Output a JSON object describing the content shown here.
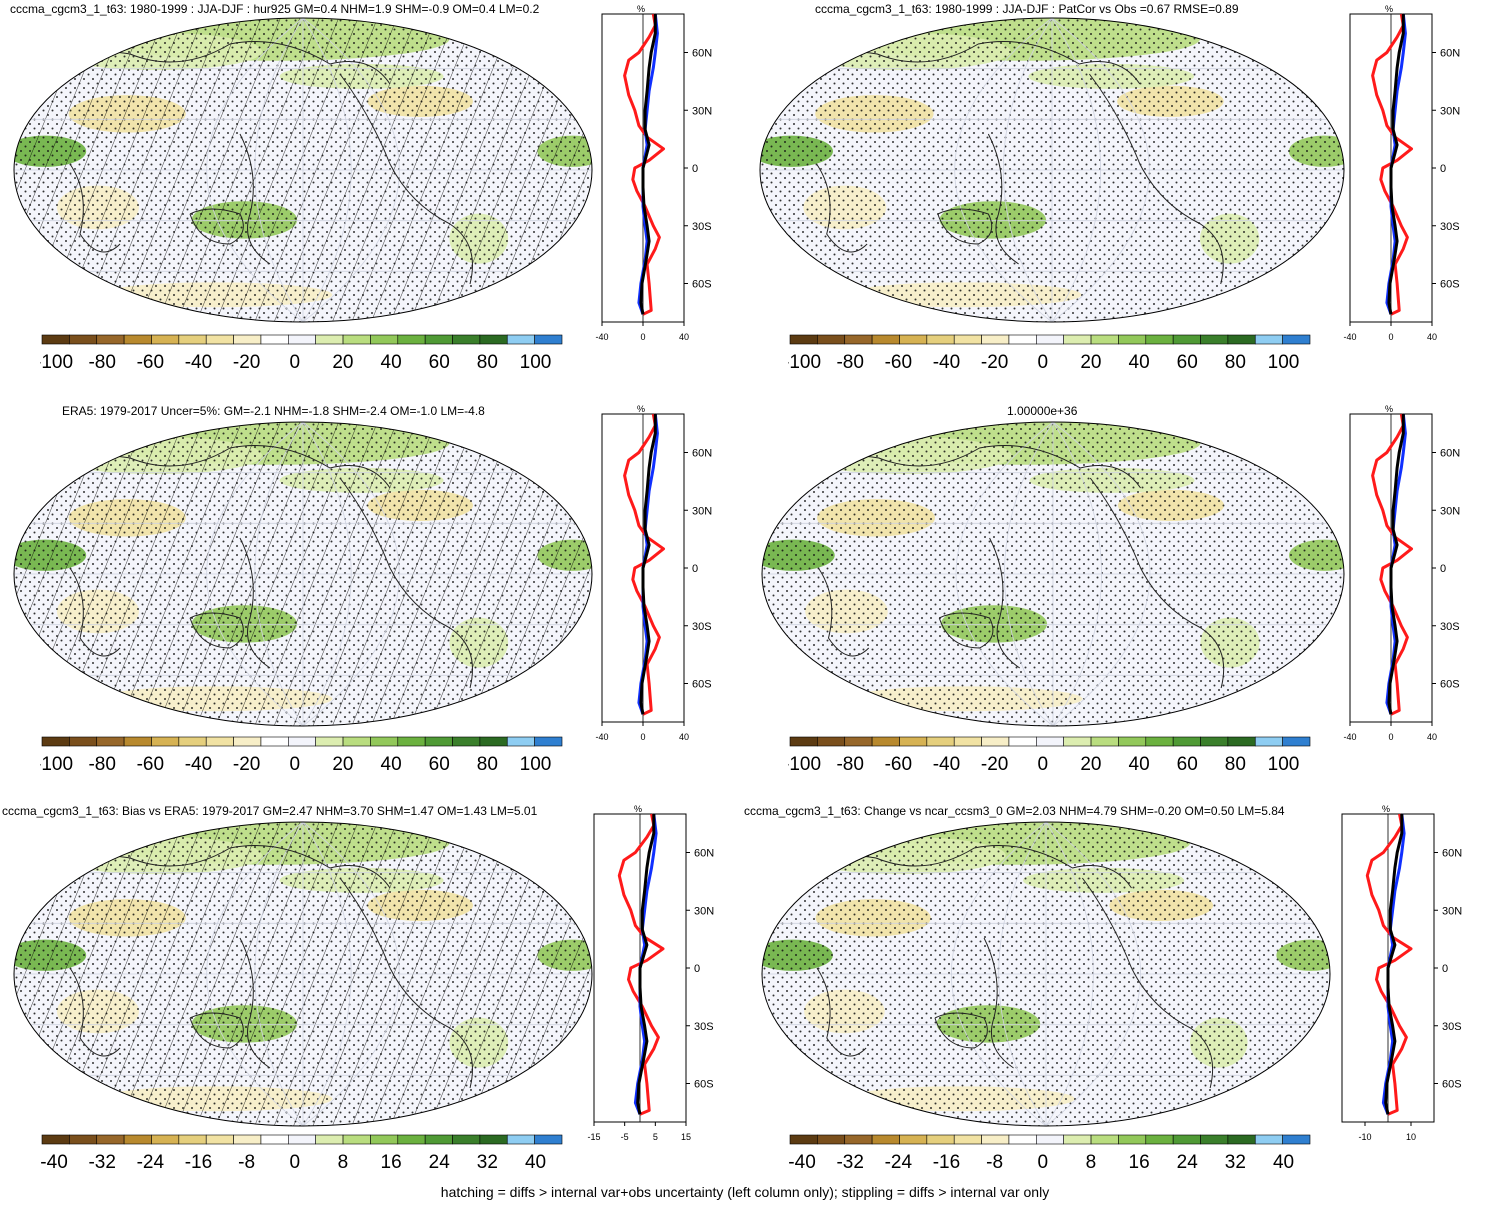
{
  "footer": "hatching = diffs > internal var+obs uncertainty (left column only); stippling = diffs > internal var only",
  "palette": [
    "#5c3b12",
    "#7a4f1c",
    "#97672a",
    "#b8892e",
    "#d6b253",
    "#e5cf7d",
    "#f1e2a3",
    "#f7eec7",
    "#ffffff",
    "#f3f4fb",
    "#dcedb0",
    "#b9dd7f",
    "#92c85a",
    "#6bb13f",
    "#4f9a35",
    "#3a7f2b",
    "#2b6a22",
    "#8ecdf2",
    "#2f7fd0"
  ],
  "lat_labels": [
    "60N",
    "30N",
    "0",
    "30S",
    "60S"
  ],
  "profile_unit": "%",
  "panels": [
    {
      "id": "p1",
      "title": "cccma_cgcm3_1_t63: 1980-1999 : JJA-DJF : hur925 GM=0.4 NHM=1.9 SHM=-0.9 OM=0.4 LM=0.2",
      "hatch": true,
      "cbar_labels": [
        "-100",
        "-80",
        "-60",
        "-40",
        "-20",
        "0",
        "20",
        "40",
        "60",
        "80",
        "100"
      ],
      "xticks": [
        "-40",
        "0",
        "40"
      ],
      "xlim": [
        -40,
        40
      ]
    },
    {
      "id": "p2",
      "title": "cccma_cgcm3_1_t63: 1980-1999 : JJA-DJF : PatCor vs Obs =0.67 RMSE=0.89",
      "hatch": false,
      "cbar_labels": [
        "-100",
        "-80",
        "-60",
        "-40",
        "-20",
        "0",
        "20",
        "40",
        "60",
        "80",
        "100"
      ],
      "xticks": [
        "-40",
        "0",
        "40"
      ],
      "xlim": [
        -40,
        40
      ]
    },
    {
      "id": "p3",
      "title": "ERA5: 1979-2017 Uncer=5%: GM=-2.1 NHM=-1.8 SHM=-2.4 OM=-1.0 LM=-4.8",
      "hatch": true,
      "cbar_labels": [
        "-100",
        "-80",
        "-60",
        "-40",
        "-20",
        "0",
        "20",
        "40",
        "60",
        "80",
        "100"
      ],
      "xticks": [
        "-40",
        "0",
        "40"
      ],
      "xlim": [
        -40,
        40
      ]
    },
    {
      "id": "p4",
      "title": "1.00000e+36",
      "hatch": false,
      "cbar_labels": [
        "-100",
        "-80",
        "-60",
        "-40",
        "-20",
        "0",
        "20",
        "40",
        "60",
        "80",
        "100"
      ],
      "xticks": [
        "-40",
        "0",
        "40"
      ],
      "xlim": [
        -40,
        40
      ]
    },
    {
      "id": "p5",
      "title": "cccma_cgcm3_1_t63: Bias vs ERA5: 1979-2017 GM=2.47 NHM=3.70 SHM=1.47 OM=1.43 LM=5.01",
      "hatch": true,
      "cbar_labels": [
        "-40",
        "-32",
        "-24",
        "-16",
        "-8",
        "0",
        "8",
        "16",
        "24",
        "32",
        "40"
      ],
      "xticks": [
        "-15",
        "-5",
        "5",
        "15"
      ],
      "xlim": [
        -15,
        15
      ]
    },
    {
      "id": "p6",
      "title": "cccma_cgcm3_1_t63: Change vs ncar_ccsm3_0 GM=2.03 NHM=4.79 SHM=-0.20 OM=0.50 LM=5.84",
      "hatch": false,
      "cbar_labels": [
        "-40",
        "-32",
        "-24",
        "-16",
        "-8",
        "0",
        "8",
        "16",
        "24",
        "32",
        "40"
      ],
      "xticks": [
        "-10",
        "10"
      ],
      "xlim": [
        -20,
        20
      ]
    }
  ]
}
